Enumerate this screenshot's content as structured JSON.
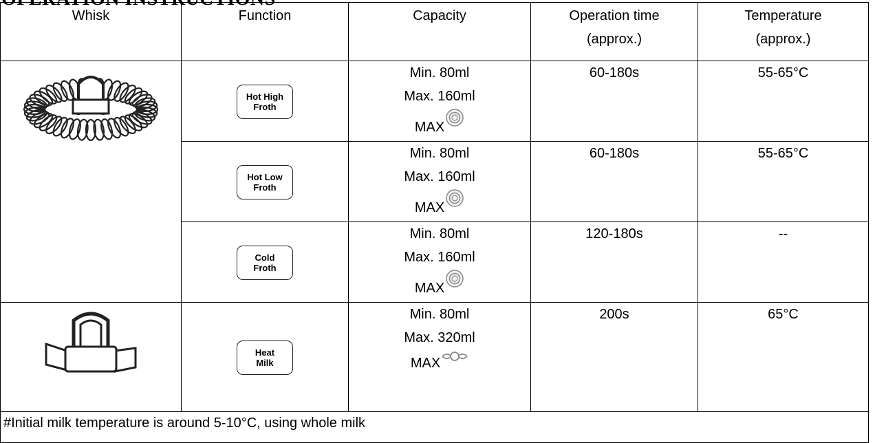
{
  "header": {
    "title": "OPERATION INSTRUCTIONS"
  },
  "table": {
    "headers": [
      [
        "Whisk"
      ],
      [
        "Function"
      ],
      [
        "Capacity"
      ],
      [
        "Operation time",
        "(approx.)"
      ],
      [
        "Temperature",
        "(approx.)"
      ]
    ],
    "rows": [
      {
        "function": [
          "Hot High",
          "Froth"
        ],
        "capacity": [
          "Min. 80ml",
          "Max. 160ml",
          "MAX"
        ],
        "time": "60-180s",
        "temperature": "55-65°C"
      },
      {
        "function": [
          "Hot Low",
          "Froth"
        ],
        "capacity": [
          "Min. 80ml",
          "Max. 160ml",
          "MAX"
        ],
        "time": "60-180s",
        "temperature": "55-65°C"
      },
      {
        "function": [
          "Cold",
          "Froth"
        ],
        "capacity": [
          "Min. 80ml",
          "Max. 160ml",
          "MAX"
        ],
        "time": "120-180s",
        "temperature": "--"
      },
      {
        "function": [
          "Heat",
          "Milk"
        ],
        "capacity": [
          "Min. 80ml",
          "Max. 320ml",
          "MAX"
        ],
        "time": "200s",
        "temperature": "65°C"
      }
    ]
  },
  "footnote": "#Initial milk temperature is around 5-10°C, using whole milk"
}
